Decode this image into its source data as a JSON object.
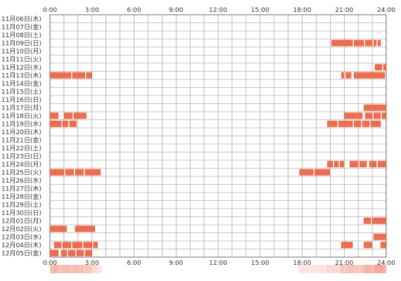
{
  "chart_data": {
    "type": "heatmap",
    "x_axis": {
      "start_hour": 0,
      "end_hour": 24,
      "tick_labels": [
        "0:00",
        "3:00",
        "6:00",
        "9:00",
        "12:00",
        "15:00",
        "18:00",
        "21:00",
        "24:00"
      ],
      "grid_every_hours": 1,
      "ticks_top_and_bottom": true
    },
    "rows": [
      {
        "label": "11月06日(木)",
        "segments": []
      },
      {
        "label": "11月07日(金)",
        "segments": []
      },
      {
        "label": "11月08日(土)",
        "segments": []
      },
      {
        "label": "11月09日(日)",
        "segments": [
          [
            20.1,
            20.5
          ],
          [
            20.5,
            21.2
          ],
          [
            21.2,
            21.6
          ],
          [
            21.7,
            22.4
          ],
          [
            22.5,
            23.0
          ],
          [
            23.1,
            23.3
          ],
          [
            23.4,
            23.6
          ]
        ]
      },
      {
        "label": "11月10日(月)",
        "segments": []
      },
      {
        "label": "11月11日(火)",
        "segments": []
      },
      {
        "label": "11月12日(水)",
        "segments": [
          [
            23.2,
            23.7
          ],
          [
            23.8,
            24.0
          ]
        ]
      },
      {
        "label": "11月13日(木)",
        "segments": [
          [
            0.0,
            1.5
          ],
          [
            1.6,
            2.5
          ],
          [
            2.6,
            3.0
          ],
          [
            20.8,
            21.0
          ],
          [
            21.1,
            21.5
          ],
          [
            21.7,
            22.6
          ],
          [
            22.6,
            23.6
          ],
          [
            23.6,
            23.9
          ]
        ]
      },
      {
        "label": "11月14日(金)",
        "segments": []
      },
      {
        "label": "11月15日(土)",
        "segments": []
      },
      {
        "label": "11月16日(日)",
        "segments": []
      },
      {
        "label": "11月17日(月)",
        "segments": [
          [
            22.4,
            23.2
          ],
          [
            23.2,
            24.0
          ]
        ]
      },
      {
        "label": "11月18日(火)",
        "segments": [
          [
            0.0,
            0.6
          ],
          [
            1.0,
            1.6
          ],
          [
            1.7,
            2.6
          ],
          [
            21.0,
            21.6
          ],
          [
            21.6,
            22.3
          ],
          [
            22.5,
            23.0
          ],
          [
            23.1,
            23.6
          ],
          [
            23.7,
            24.0
          ]
        ]
      },
      {
        "label": "11月19日(水)",
        "segments": [
          [
            0.0,
            0.3
          ],
          [
            0.3,
            0.8
          ],
          [
            0.9,
            1.3
          ],
          [
            1.4,
            1.9
          ],
          [
            19.8,
            20.5
          ],
          [
            20.6,
            21.1
          ],
          [
            21.1,
            21.6
          ],
          [
            21.7,
            22.2
          ],
          [
            22.3,
            22.8
          ],
          [
            22.9,
            23.6
          ]
        ]
      },
      {
        "label": "11月20日(木)",
        "segments": []
      },
      {
        "label": "11月21日(金)",
        "segments": []
      },
      {
        "label": "11月22日(土)",
        "segments": []
      },
      {
        "label": "11月23日(日)",
        "segments": []
      },
      {
        "label": "11月24日(月)",
        "segments": [
          [
            19.8,
            20.2
          ],
          [
            20.3,
            20.6
          ],
          [
            20.7,
            21.0
          ],
          [
            21.4,
            22.0
          ],
          [
            22.1,
            22.6
          ],
          [
            22.8,
            23.3
          ],
          [
            23.4,
            24.0
          ]
        ]
      },
      {
        "label": "11月25日(火)",
        "segments": [
          [
            0.0,
            0.4
          ],
          [
            0.4,
            1.0
          ],
          [
            1.1,
            1.7
          ],
          [
            1.8,
            2.4
          ],
          [
            2.5,
            3.6
          ],
          [
            17.8,
            18.8
          ],
          [
            18.9,
            19.4
          ],
          [
            19.4,
            20.0
          ]
        ]
      },
      {
        "label": "11月26日(水)",
        "segments": []
      },
      {
        "label": "11月27日(木)",
        "segments": []
      },
      {
        "label": "11月28日(金)",
        "segments": []
      },
      {
        "label": "11月29日(土)",
        "segments": []
      },
      {
        "label": "11月30日(日)",
        "segments": []
      },
      {
        "label": "12月01日(月)",
        "segments": [
          [
            22.4,
            22.9
          ],
          [
            23.0,
            23.5
          ],
          [
            23.5,
            24.0
          ]
        ]
      },
      {
        "label": "12月02日(火)",
        "segments": [
          [
            0.0,
            1.2
          ],
          [
            1.8,
            3.2
          ]
        ]
      },
      {
        "label": "12月03日(水)",
        "segments": [
          [
            23.1,
            24.0
          ]
        ]
      },
      {
        "label": "12月04日(木)",
        "segments": [
          [
            0.3,
            0.8
          ],
          [
            0.9,
            1.5
          ],
          [
            1.6,
            2.3
          ],
          [
            2.4,
            3.0
          ],
          [
            3.1,
            3.4
          ],
          [
            20.8,
            21.6
          ],
          [
            22.4,
            23.0
          ],
          [
            23.6,
            24.0
          ]
        ]
      },
      {
        "label": "12月05日(金)",
        "segments": [
          [
            0.0,
            0.6
          ],
          [
            0.8,
            1.2
          ],
          [
            1.3,
            1.8
          ],
          [
            1.9,
            2.4
          ],
          [
            2.5,
            3.0
          ]
        ]
      }
    ],
    "summary_bar": {
      "colors": {
        "low": "#fdeee8",
        "high": "#f49a86"
      }
    },
    "colors": {
      "mark": "#f26b4b",
      "mark_border": "#e05a3a",
      "grid": "#8c8c8c",
      "frame": "#555555"
    }
  }
}
